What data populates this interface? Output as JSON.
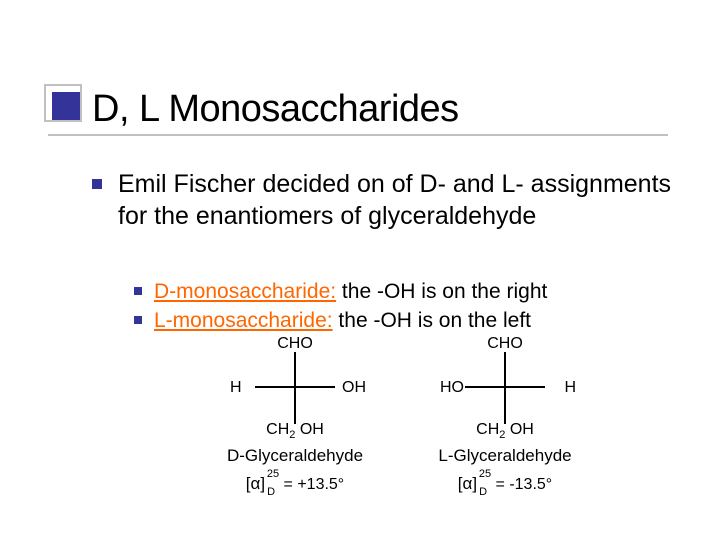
{
  "title": "D, L Monosaccharides",
  "colors": {
    "accent": "#333399",
    "highlight": "#ff6600",
    "rule": "#c0c0c0",
    "text": "#000000",
    "background": "#ffffff"
  },
  "level1_text": "Emil Fischer decided on of D- and L- assignments for the enantiomers of glyceraldehyde",
  "sub_items": [
    {
      "label": "D-monosaccharide:",
      "rest": " the -OH is on the right"
    },
    {
      "label": "L-monosaccharide:",
      "rest": " the -OH  is on the left"
    }
  ],
  "molecules": [
    {
      "top": "CHO",
      "left": "H",
      "right": "OH",
      "bottom_html": "CH<span class='sub'>2</span> OH",
      "name": "D-Glyceraldehyde",
      "rotation_value": " = +13.5°",
      "alpha_sup": "25",
      "alpha_sub": "D"
    },
    {
      "top": "CHO",
      "left": "HO",
      "right": "H",
      "bottom_html": "CH<span class='sub'>2</span> OH",
      "name": "L-Glyceraldehyde",
      "rotation_value": " = -13.5°",
      "alpha_sup": "25",
      "alpha_sub": "D"
    }
  ]
}
